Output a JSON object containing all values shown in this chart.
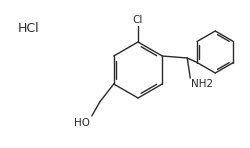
{
  "bg_color": "#ffffff",
  "line_color": "#2a2a2a",
  "text_color": "#2a2a2a",
  "hcl_text": "HCl",
  "cl_text": "Cl",
  "ho_text": "HO",
  "nh2_text": "NH2",
  "figsize": [
    2.51,
    1.48
  ],
  "dpi": 100
}
